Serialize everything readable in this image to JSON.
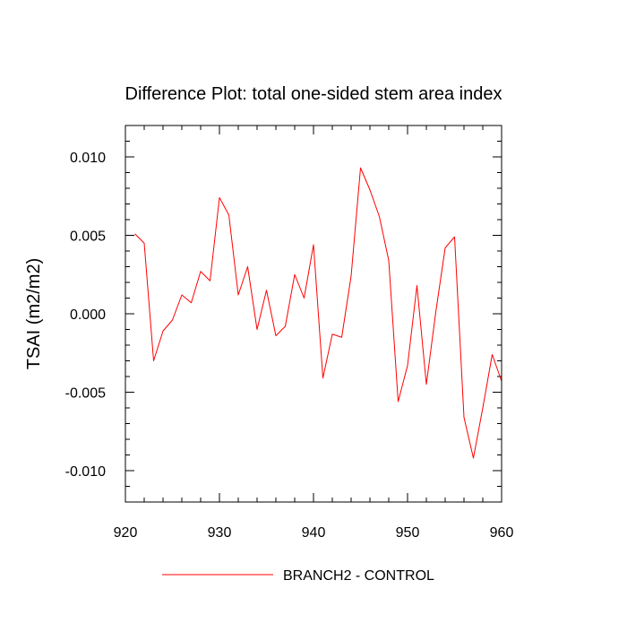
{
  "chart_data": {
    "type": "line",
    "title": "Difference Plot: total one-sided stem area index",
    "xlabel": "",
    "ylabel": "TSAI  (m2/m2)",
    "xlim": [
      920,
      960
    ],
    "ylim": [
      -0.012,
      0.012
    ],
    "x_ticks": [
      920,
      930,
      940,
      950,
      960
    ],
    "x_tick_labels": [
      "920",
      "930",
      "940",
      "950",
      "960"
    ],
    "y_ticks": [
      -0.01,
      -0.005,
      0.0,
      0.005,
      0.01
    ],
    "y_tick_labels": [
      "-0.010",
      "-0.005",
      "0.000",
      "0.005",
      "0.010"
    ],
    "grid": false,
    "legend_position": "bottom-center",
    "series": [
      {
        "name": "BRANCH2 - CONTROL",
        "color": "#ff0000",
        "x": [
          921,
          922,
          923,
          924,
          925,
          926,
          927,
          928,
          929,
          930,
          931,
          932,
          933,
          934,
          935,
          936,
          937,
          938,
          939,
          940,
          941,
          942,
          943,
          944,
          945,
          946,
          947,
          948,
          949,
          950,
          951,
          952,
          953,
          954,
          955,
          956,
          957,
          958,
          959,
          960
        ],
        "values": [
          0.0051,
          0.0045,
          -0.003,
          -0.0011,
          -0.0004,
          0.0012,
          0.0007,
          0.0027,
          0.0021,
          0.0074,
          0.0063,
          0.0012,
          0.003,
          -0.001,
          0.0015,
          -0.0014,
          -0.0008,
          0.0025,
          0.001,
          0.0044,
          -0.0041,
          -0.0013,
          -0.0015,
          0.0024,
          0.0093,
          0.0079,
          0.0062,
          0.0034,
          -0.0056,
          -0.0033,
          0.0018,
          -0.0045,
          0.0001,
          0.0042,
          0.0049,
          -0.0066,
          -0.0092,
          -0.006,
          -0.0026,
          -0.0043
        ]
      }
    ]
  }
}
